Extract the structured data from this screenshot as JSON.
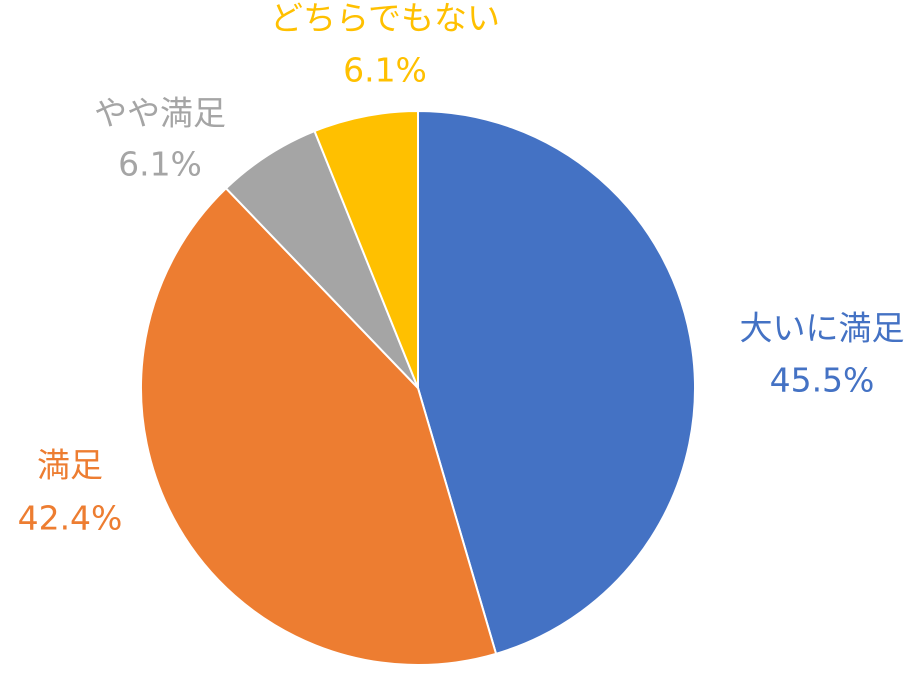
{
  "chart_data": {
    "type": "pie",
    "categories": [
      "大いに満足",
      "満足",
      "やや満足",
      "どちらでもない"
    ],
    "values": [
      45.5,
      42.4,
      6.1,
      6.1
    ],
    "value_labels": [
      "45.5%",
      "42.4%",
      "6.1%",
      "6.1%"
    ],
    "colors": [
      "#4472c4",
      "#ed7d31",
      "#a5a5a5",
      "#ffc000"
    ]
  }
}
